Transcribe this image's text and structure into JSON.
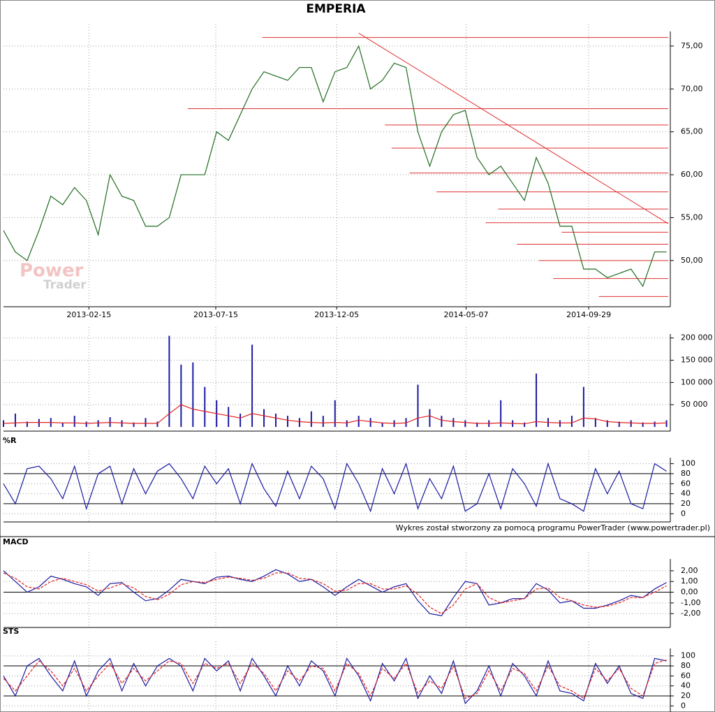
{
  "chart_data": [
    {
      "type": "line",
      "title": "EMPERIA",
      "watermark": [
        "Power",
        "Trader"
      ],
      "x": [
        "2012-11-06",
        "2012-11-20",
        "2012-12-04",
        "2012-12-18",
        "2013-01-01",
        "2013-01-15",
        "2013-01-29",
        "2013-02-12",
        "2013-02-26",
        "2013-03-12",
        "2013-03-26",
        "2013-04-09",
        "2013-04-23",
        "2013-05-07",
        "2013-05-21",
        "2013-06-04",
        "2013-06-18",
        "2013-07-02",
        "2013-07-16",
        "2013-07-30",
        "2013-08-13",
        "2013-08-27",
        "2013-09-10",
        "2013-09-24",
        "2013-10-08",
        "2013-10-22",
        "2013-11-05",
        "2013-11-19",
        "2013-12-03",
        "2013-12-17",
        "2013-12-31",
        "2014-01-14",
        "2014-01-28",
        "2014-02-11",
        "2014-02-25",
        "2014-03-11",
        "2014-03-25",
        "2014-04-08",
        "2014-04-22",
        "2014-05-06",
        "2014-05-20",
        "2014-06-03",
        "2014-06-17",
        "2014-07-01",
        "2014-07-15",
        "2014-07-29",
        "2014-08-12",
        "2014-08-26",
        "2014-09-09",
        "2014-09-23",
        "2014-10-07",
        "2014-10-21",
        "2014-11-04",
        "2014-11-18",
        "2014-12-02",
        "2014-12-16",
        "2014-12-30"
      ],
      "xlim": [
        "2012-11-06",
        "2015-01-01"
      ],
      "xticks": [
        "2013-02-15",
        "2013-07-15",
        "2013-12-05",
        "2014-05-07",
        "2014-09-29"
      ],
      "series": [
        {
          "color": "#1f6b1f",
          "values": [
            53.5,
            51,
            50,
            53.5,
            57.5,
            56.5,
            58.5,
            57,
            53,
            60,
            57.5,
            57,
            54,
            54,
            55,
            60,
            60,
            60,
            65,
            64,
            67,
            70,
            72,
            71.5,
            71,
            72.5,
            72.5,
            68.5,
            72,
            72.5,
            75,
            70,
            71,
            73,
            72.5,
            65,
            61,
            65,
            67,
            67.5,
            62,
            60,
            61,
            59,
            57,
            62,
            59,
            54,
            54,
            49,
            49,
            48,
            48.5,
            49,
            47,
            51,
            51
          ]
        }
      ],
      "levels": {
        "color": "#e03030",
        "values": [
          76.0,
          67.7,
          65.8,
          63.1,
          60.2,
          58.0,
          56.0,
          54.4,
          53.3,
          51.9,
          50.0,
          47.9,
          45.8
        ],
        "x": [
          "2013-09-08",
          "2013-06-12",
          "2014-01-31",
          "2014-02-08",
          "2014-03-01",
          "2014-04-02",
          "2014-06-14",
          "2014-05-30",
          "2014-08-28",
          "2014-07-06",
          "2014-08-01",
          "2014-08-18",
          "2014-10-11"
        ]
      },
      "trendline": {
        "color": "#e03030",
        "x": [
          "2013-12-31",
          "2015-01-01"
        ],
        "values": [
          76.5,
          54.3
        ]
      },
      "ylim": [
        45.1,
        76.7
      ],
      "yticks": [
        {
          "value": 50,
          "label": "50,00"
        },
        {
          "value": 55,
          "label": "55,00"
        },
        {
          "value": 60,
          "label": "60,00"
        },
        {
          "value": 65,
          "label": "65,00"
        },
        {
          "value": 70,
          "label": "70,00"
        },
        {
          "value": 75,
          "label": "75,00"
        }
      ]
    },
    {
      "type": "bar",
      "series": [
        {
          "color": "#1a1aa0",
          "values": [
            15000,
            30000,
            12000,
            18000,
            20000,
            10000,
            25000,
            12000,
            15000,
            22000,
            15000,
            10000,
            20000,
            12000,
            205000,
            140000,
            145000,
            90000,
            60000,
            45000,
            30000,
            185000,
            40000,
            30000,
            25000,
            20000,
            35000,
            25000,
            60000,
            15000,
            25000,
            20000,
            10000,
            15000,
            20000,
            95000,
            40000,
            25000,
            20000,
            15000,
            10000,
            15000,
            60000,
            15000,
            10000,
            120000,
            20000,
            15000,
            25000,
            90000,
            20000,
            15000,
            12000,
            15000,
            10000,
            12000,
            15000
          ]
        },
        {
          "type": "line",
          "color": "#e02020",
          "values": [
            8000,
            9000,
            10000,
            10000,
            10000,
            9000,
            9000,
            8000,
            9000,
            10000,
            9000,
            8000,
            8000,
            8000,
            30000,
            50000,
            40000,
            35000,
            30000,
            25000,
            20000,
            30000,
            25000,
            20000,
            15000,
            12000,
            10000,
            9000,
            10000,
            9000,
            15000,
            12000,
            9000,
            8000,
            9000,
            20000,
            25000,
            15000,
            12000,
            10000,
            8000,
            8000,
            9000,
            8000,
            7000,
            12000,
            10000,
            9000,
            9000,
            20000,
            18000,
            12000,
            10000,
            9000,
            8000,
            8000,
            9000
          ]
        }
      ],
      "ylim": [
        0,
        209000
      ],
      "yticks": [
        {
          "value": 50000,
          "label": "50 000"
        },
        {
          "value": 100000,
          "label": "100 000"
        },
        {
          "value": 150000,
          "label": "150 000"
        },
        {
          "value": 200000,
          "label": "200 000"
        }
      ]
    },
    {
      "type": "line",
      "title": "%R",
      "series": [
        {
          "color": "#1a1aa0",
          "values": [
            60,
            20,
            90,
            95,
            70,
            30,
            95,
            10,
            80,
            95,
            20,
            90,
            40,
            85,
            100,
            70,
            30,
            95,
            60,
            90,
            20,
            100,
            50,
            15,
            85,
            30,
            95,
            70,
            10,
            100,
            60,
            5,
            90,
            40,
            100,
            10,
            70,
            30,
            95,
            5,
            20,
            80,
            10,
            90,
            60,
            15,
            100,
            30,
            20,
            5,
            90,
            40,
            85,
            20,
            10,
            100,
            85
          ]
        }
      ],
      "hlines": [
        20,
        80
      ],
      "ylim": [
        -8,
        112
      ],
      "yticks": [
        0,
        20,
        40,
        60,
        80,
        100
      ]
    },
    {
      "type": "line",
      "title": "MACD",
      "series": [
        {
          "color": "#1a1aa0",
          "values": [
            2.0,
            1.0,
            0.0,
            0.5,
            1.5,
            1.2,
            0.8,
            0.5,
            -0.3,
            0.8,
            0.9,
            0.0,
            -0.8,
            -0.6,
            0.2,
            1.2,
            1.0,
            0.8,
            1.4,
            1.5,
            1.2,
            1.0,
            1.5,
            2.1,
            1.7,
            1.0,
            1.2,
            0.5,
            -0.3,
            0.5,
            1.2,
            0.6,
            0.0,
            0.5,
            0.8,
            -0.8,
            -2.0,
            -2.2,
            -0.5,
            1.0,
            0.8,
            -1.2,
            -1.0,
            -0.6,
            -0.6,
            0.8,
            0.2,
            -1.0,
            -0.8,
            -1.5,
            -1.5,
            -1.2,
            -0.8,
            -0.3,
            -0.5,
            0.3,
            0.9
          ]
        },
        {
          "color": "#e02020",
          "dashed": true,
          "values": [
            1.8,
            1.3,
            0.5,
            0.3,
            1.0,
            1.3,
            1.0,
            0.7,
            0.1,
            0.4,
            0.8,
            0.4,
            -0.4,
            -0.7,
            -0.2,
            0.7,
            1.0,
            0.9,
            1.2,
            1.4,
            1.3,
            1.1,
            1.3,
            1.8,
            1.8,
            1.3,
            1.2,
            0.8,
            0.1,
            0.2,
            0.8,
            0.8,
            0.3,
            0.3,
            0.6,
            -0.2,
            -1.4,
            -2.0,
            -1.2,
            0.3,
            0.8,
            -0.5,
            -1.0,
            -0.8,
            -0.6,
            0.3,
            0.4,
            -0.5,
            -0.8,
            -1.2,
            -1.4,
            -1.3,
            -1.0,
            -0.5,
            -0.5,
            0.0,
            0.6
          ]
        }
      ],
      "hlines": [
        0
      ],
      "ylim": [
        -2.9,
        3.1
      ],
      "yticks": [
        {
          "value": -2,
          "label": "-2,00"
        },
        {
          "value": -1,
          "label": "-1,00"
        },
        {
          "value": 0,
          "label": "0,00"
        },
        {
          "value": 1,
          "label": "1,00"
        },
        {
          "value": 2,
          "label": "2,00"
        }
      ]
    },
    {
      "type": "line",
      "title": "STS",
      "series": [
        {
          "color": "#1a1aa0",
          "values": [
            60,
            20,
            80,
            95,
            60,
            30,
            90,
            20,
            70,
            95,
            30,
            85,
            40,
            80,
            95,
            80,
            30,
            95,
            70,
            90,
            30,
            95,
            60,
            20,
            80,
            40,
            90,
            70,
            20,
            95,
            60,
            10,
            85,
            50,
            95,
            15,
            60,
            25,
            90,
            5,
            30,
            80,
            20,
            85,
            60,
            20,
            90,
            30,
            25,
            10,
            85,
            45,
            80,
            25,
            15,
            95,
            90
          ]
        },
        {
          "color": "#e02020",
          "dashed": true,
          "values": [
            55,
            30,
            60,
            90,
            70,
            40,
            75,
            30,
            60,
            85,
            45,
            75,
            50,
            70,
            90,
            85,
            45,
            85,
            75,
            85,
            45,
            85,
            65,
            30,
            70,
            50,
            80,
            75,
            30,
            85,
            65,
            20,
            75,
            55,
            85,
            25,
            50,
            35,
            80,
            15,
            25,
            70,
            30,
            75,
            65,
            30,
            80,
            40,
            30,
            15,
            75,
            50,
            75,
            35,
            20,
            85,
            92
          ]
        }
      ],
      "hlines": [
        20,
        80
      ],
      "ylim": [
        -8,
        115
      ],
      "yticks": [
        0,
        20,
        40,
        60,
        80,
        100
      ]
    }
  ],
  "footer": "Wykres został stworzony za pomocą programu PowerTrader (www.powertrader.pl)"
}
